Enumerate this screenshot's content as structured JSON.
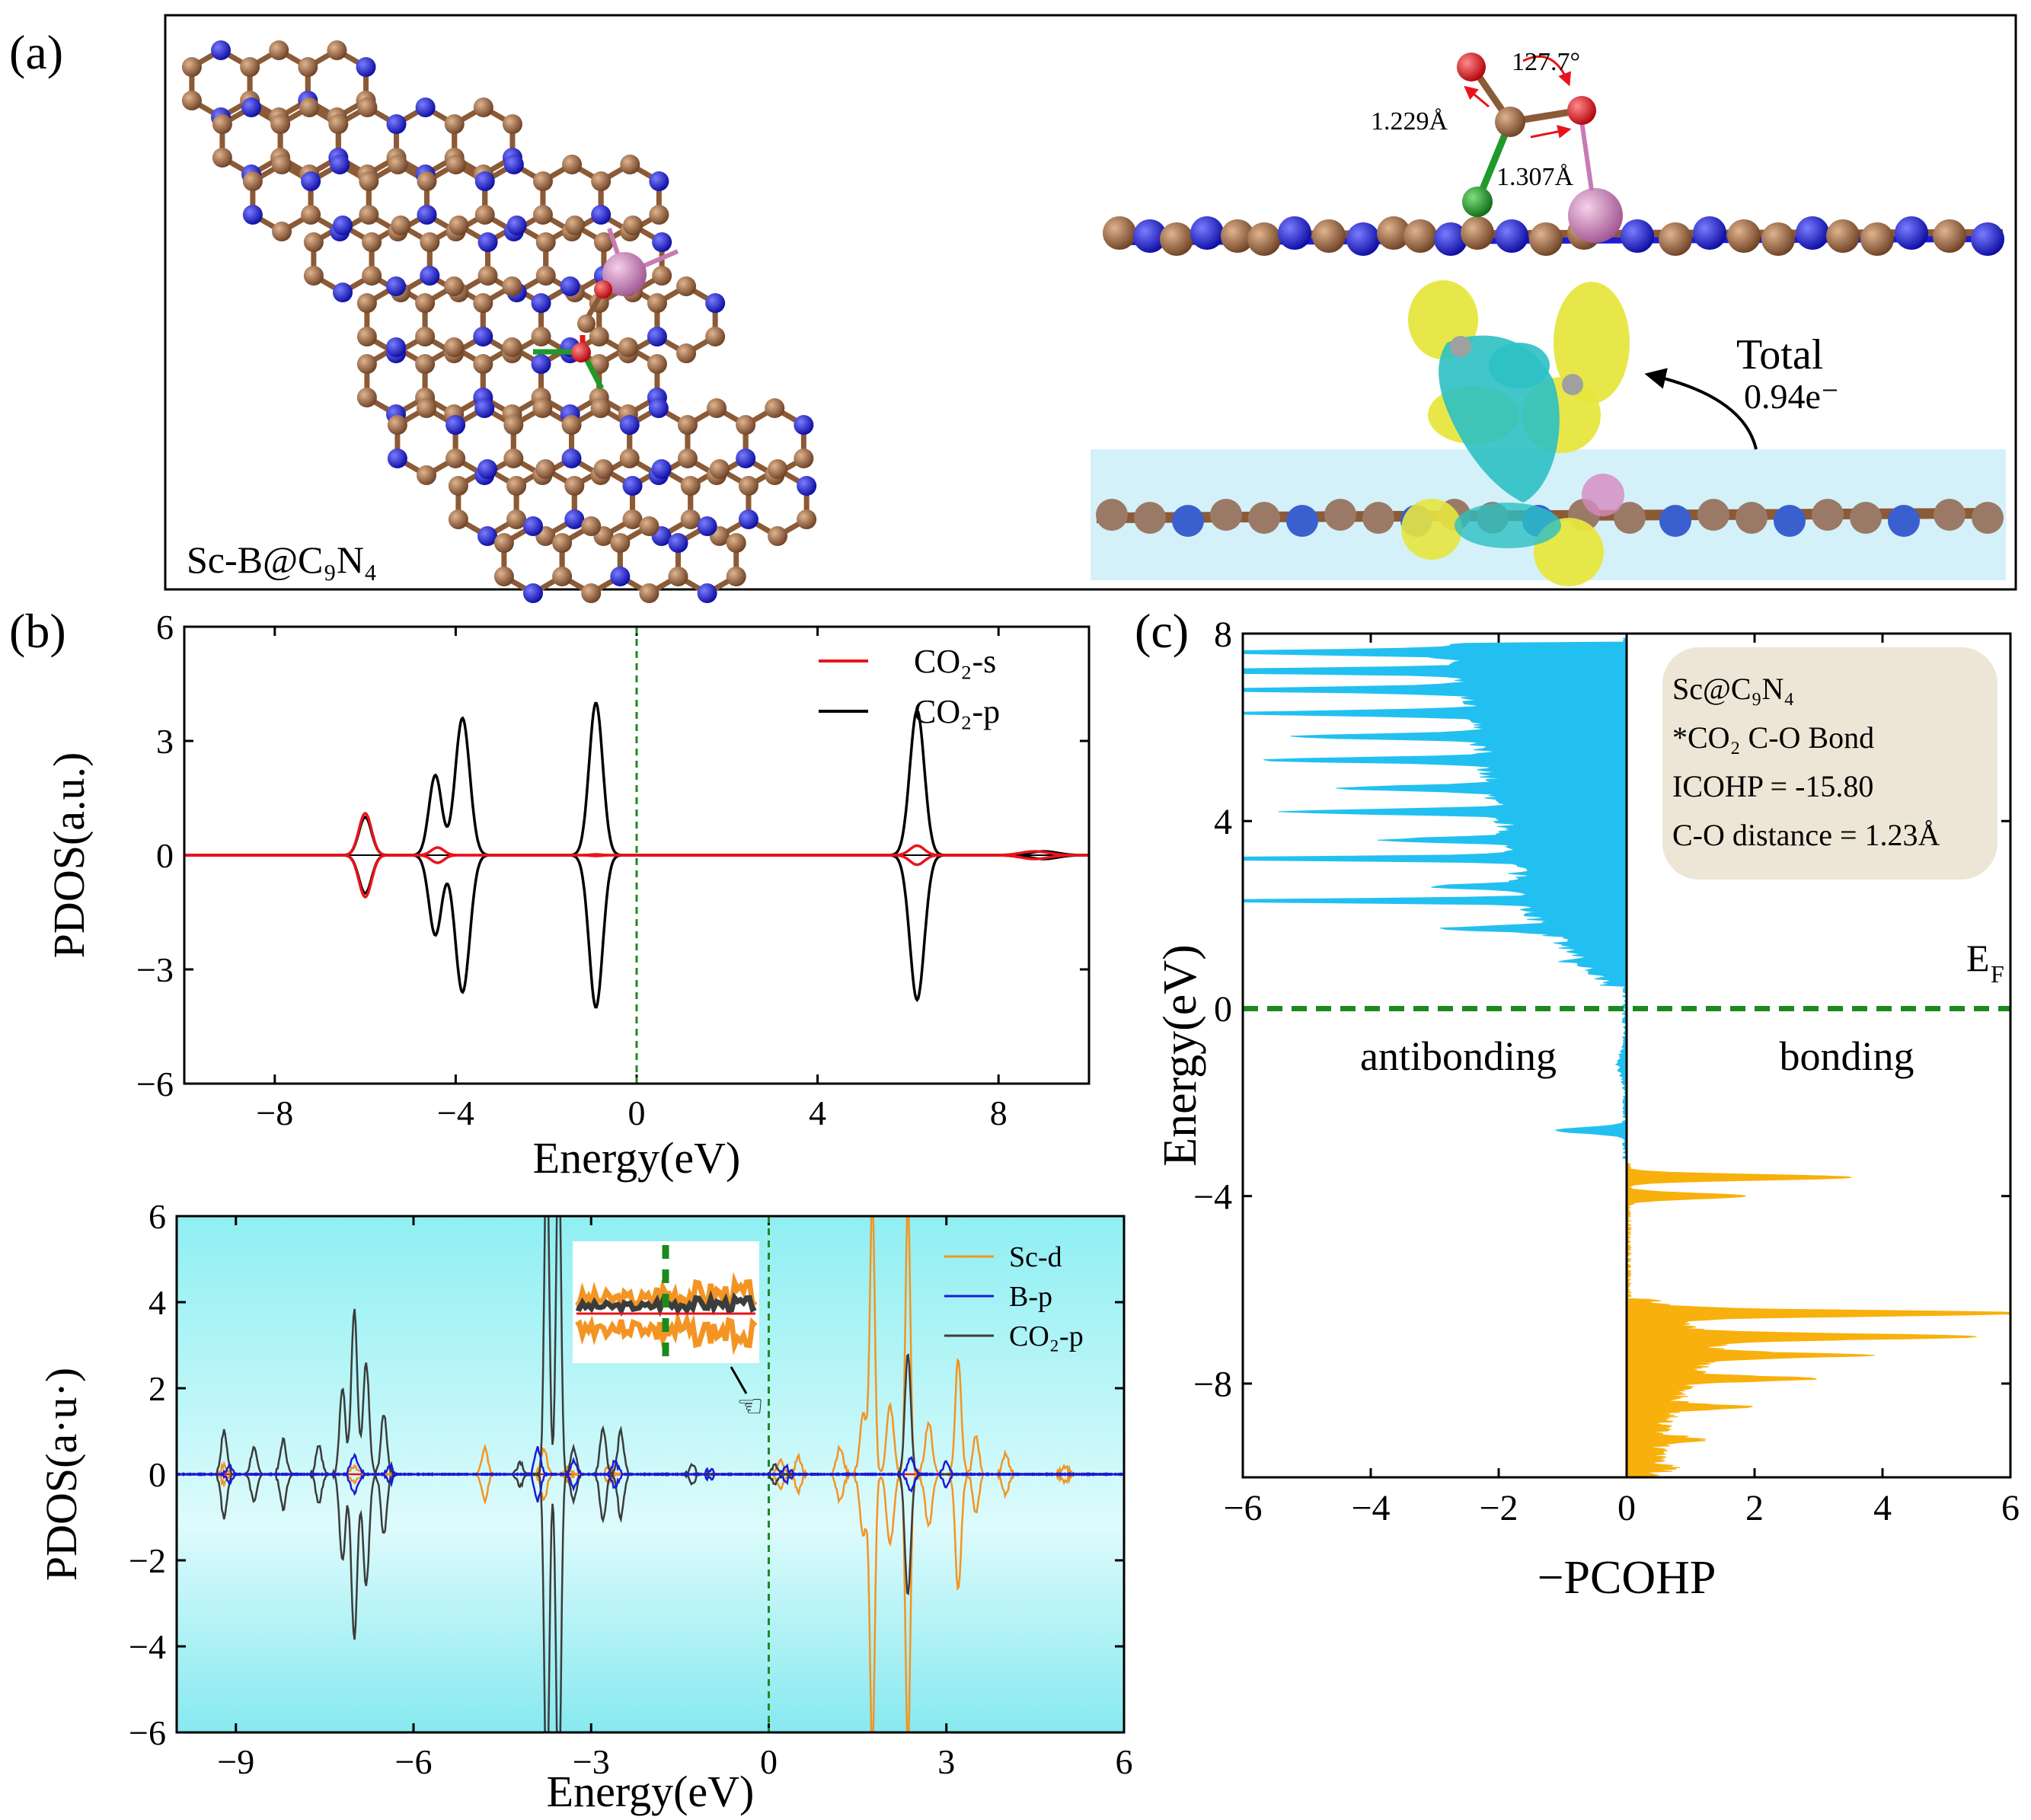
{
  "panel_a": {
    "label": "(a)",
    "structure_label": "Sc-B@C₉N₄",
    "angle": "127.7°",
    "bond_1": "1.229Å",
    "bond_2": "1.307Å",
    "charge_title": "Total",
    "charge_value": "0.94e⁻",
    "colors": {
      "carbon": "#8B5A36",
      "nitrogen": "#1B1BD8",
      "oxygen": "#E8141A",
      "boron": "#1F9A2A",
      "scandium": "#D58AC0",
      "yellow": "#E9E84C",
      "cyan": "#2EC2C8"
    }
  },
  "panel_b": {
    "label": "(b)"
  },
  "panel_c": {
    "label": "(c)"
  },
  "chart_data": [
    {
      "id": "b-top",
      "type": "line",
      "xlabel": "Energy(eV)",
      "ylabel": "PDOS(a.u.)",
      "xlim": [
        -10,
        10
      ],
      "ylim": [
        -6,
        6
      ],
      "xticks": [
        -8,
        -4,
        0,
        4,
        8
      ],
      "yticks": [
        -6,
        -3,
        0,
        3,
        6
      ],
      "fermi_level": 0,
      "series": [
        {
          "name": "CO₂-s",
          "color": "#E8141A",
          "peaks": [
            [
              -6.0,
              1.1,
              0.14
            ],
            [
              -4.4,
              0.2,
              0.14
            ],
            [
              -0.9,
              0.02,
              0.12
            ],
            [
              6.2,
              0.25,
              0.16
            ],
            [
              8.8,
              0.1,
              0.3
            ]
          ]
        },
        {
          "name": "CO₂-p",
          "color": "#000000",
          "peaks": [
            [
              -6.0,
              1.0,
              0.14
            ],
            [
              -4.45,
              2.1,
              0.14
            ],
            [
              -3.85,
              3.6,
              0.16
            ],
            [
              -0.9,
              4.0,
              0.15
            ],
            [
              6.2,
              3.8,
              0.16
            ],
            [
              9.0,
              0.1,
              0.3
            ]
          ]
        }
      ]
    },
    {
      "id": "b-bottom",
      "type": "line",
      "xlabel": "Energy(eV)",
      "ylabel": "PDOS(a·u·)",
      "xlim": [
        -10,
        6
      ],
      "ylim": [
        -6,
        6
      ],
      "xticks": [
        -9,
        -6,
        -3,
        0,
        3,
        6
      ],
      "yticks": [
        -6,
        -4,
        -2,
        0,
        2,
        4,
        6
      ],
      "fermi_level": 0,
      "series": [
        {
          "name": "Sc-d",
          "color": "#F39423",
          "peaks": [
            [
              -9.2,
              0.2,
              0.05
            ],
            [
              -7.0,
              0.15,
              0.06
            ],
            [
              -4.8,
              0.6,
              0.05
            ],
            [
              -3.8,
              0.6,
              0.05
            ],
            [
              -3.4,
              0.2,
              0.05
            ],
            [
              -2.7,
              0.2,
              0.05
            ],
            [
              0.2,
              0.3,
              0.05
            ],
            [
              0.5,
              0.4,
              0.05
            ],
            [
              1.2,
              0.6,
              0.06
            ],
            [
              1.6,
              1.4,
              0.06
            ],
            [
              1.75,
              6.5,
              0.04
            ],
            [
              2.05,
              1.6,
              0.06
            ],
            [
              2.35,
              6.5,
              0.04
            ],
            [
              2.7,
              1.2,
              0.06
            ],
            [
              3.2,
              2.7,
              0.05
            ],
            [
              3.5,
              0.9,
              0.05
            ],
            [
              4.0,
              0.5,
              0.05
            ],
            [
              5.0,
              0.2,
              0.06
            ]
          ]
        },
        {
          "name": "B-p",
          "color": "#1B1BD8",
          "peaks": [
            [
              -9.1,
              0.2,
              0.05
            ],
            [
              -7.0,
              0.4,
              0.06
            ],
            [
              -6.4,
              0.2,
              0.05
            ],
            [
              -3.9,
              0.6,
              0.05
            ],
            [
              -3.3,
              0.3,
              0.05
            ],
            [
              -2.6,
              0.3,
              0.05
            ],
            [
              -1.0,
              0.1,
              0.05
            ],
            [
              0.3,
              0.15,
              0.05
            ],
            [
              2.4,
              0.4,
              0.05
            ],
            [
              3.0,
              0.3,
              0.05
            ]
          ]
        },
        {
          "name": "CO₂-p",
          "color": "#3C3C3C",
          "peaks": [
            [
              -9.2,
              1.0,
              0.05
            ],
            [
              -8.7,
              0.6,
              0.05
            ],
            [
              -8.2,
              0.8,
              0.05
            ],
            [
              -7.6,
              0.7,
              0.05
            ],
            [
              -7.2,
              2.0,
              0.05
            ],
            [
              -7.0,
              3.8,
              0.05
            ],
            [
              -6.8,
              2.6,
              0.05
            ],
            [
              -6.5,
              1.4,
              0.05
            ],
            [
              -4.2,
              0.3,
              0.05
            ],
            [
              -3.75,
              8.0,
              0.04
            ],
            [
              -3.55,
              8.0,
              0.04
            ],
            [
              -3.3,
              0.6,
              0.05
            ],
            [
              -2.8,
              1.1,
              0.05
            ],
            [
              -2.5,
              1.0,
              0.05
            ],
            [
              -1.3,
              0.2,
              0.05
            ],
            [
              0.1,
              0.2,
              0.05
            ],
            [
              2.35,
              2.8,
              0.05
            ]
          ]
        }
      ],
      "inset": {
        "label": "magnified view near Fermi level"
      }
    },
    {
      "id": "c",
      "type": "area",
      "xlabel": "−PCOHP",
      "ylabel": "Energy(eV)",
      "xlim": [
        -6,
        6
      ],
      "ylim": [
        -10,
        8
      ],
      "xticks": [
        -6,
        -4,
        -2,
        0,
        2,
        4,
        6
      ],
      "yticks": [
        -8,
        -4,
        0,
        4,
        8
      ],
      "fermi_label": "E",
      "fermi_sub": "F",
      "region_left": "antibonding",
      "region_right": "bonding",
      "antibonding_color": "#22C0F0",
      "bonding_color": "#F8B00C",
      "info": [
        "Sc@C₉N₄",
        "*CO₂ C-O Bond",
        "ICOHP = -15.80",
        "C-O distance = 1.23Å"
      ],
      "antibonding_peaks": [
        [
          -2.6,
          1.1,
          0.06
        ],
        [
          -1.2,
          0.1,
          0.2
        ],
        [
          1.0,
          0.3,
          0.05
        ],
        [
          1.7,
          1.6,
          0.05
        ],
        [
          2.3,
          5.8,
          0.04
        ],
        [
          2.6,
          1.4,
          0.05
        ],
        [
          3.2,
          6.0,
          0.04
        ],
        [
          3.6,
          1.9,
          0.05
        ],
        [
          4.2,
          3.4,
          0.05
        ],
        [
          4.7,
          2.5,
          0.05
        ],
        [
          5.3,
          3.6,
          0.05
        ],
        [
          5.8,
          2.9,
          0.05
        ],
        [
          6.3,
          4.0,
          0.05
        ],
        [
          6.8,
          4.5,
          0.05
        ],
        [
          7.2,
          5.6,
          0.05
        ],
        [
          7.6,
          4.2,
          0.05
        ]
      ],
      "antibonding_base": [
        [
          0.5,
          0.1
        ],
        [
          2.0,
          1.3
        ],
        [
          4.5,
          1.9
        ],
        [
          7.8,
          2.5
        ]
      ],
      "bonding_peaks": [
        [
          -3.6,
          3.5,
          0.06
        ],
        [
          -4.0,
          1.8,
          0.06
        ],
        [
          -6.5,
          5.6,
          0.06
        ],
        [
          -7.0,
          4.2,
          0.06
        ],
        [
          -7.4,
          2.5,
          0.05
        ],
        [
          -7.9,
          2.0,
          0.05
        ],
        [
          -8.5,
          1.3,
          0.05
        ],
        [
          -9.2,
          0.6,
          0.06
        ],
        [
          -9.8,
          0.3,
          0.06
        ]
      ],
      "bonding_base": [
        [
          -6.2,
          0.2
        ],
        [
          -7.2,
          1.2
        ],
        [
          -8.5,
          0.5
        ],
        [
          -10,
          0.2
        ]
      ]
    }
  ]
}
